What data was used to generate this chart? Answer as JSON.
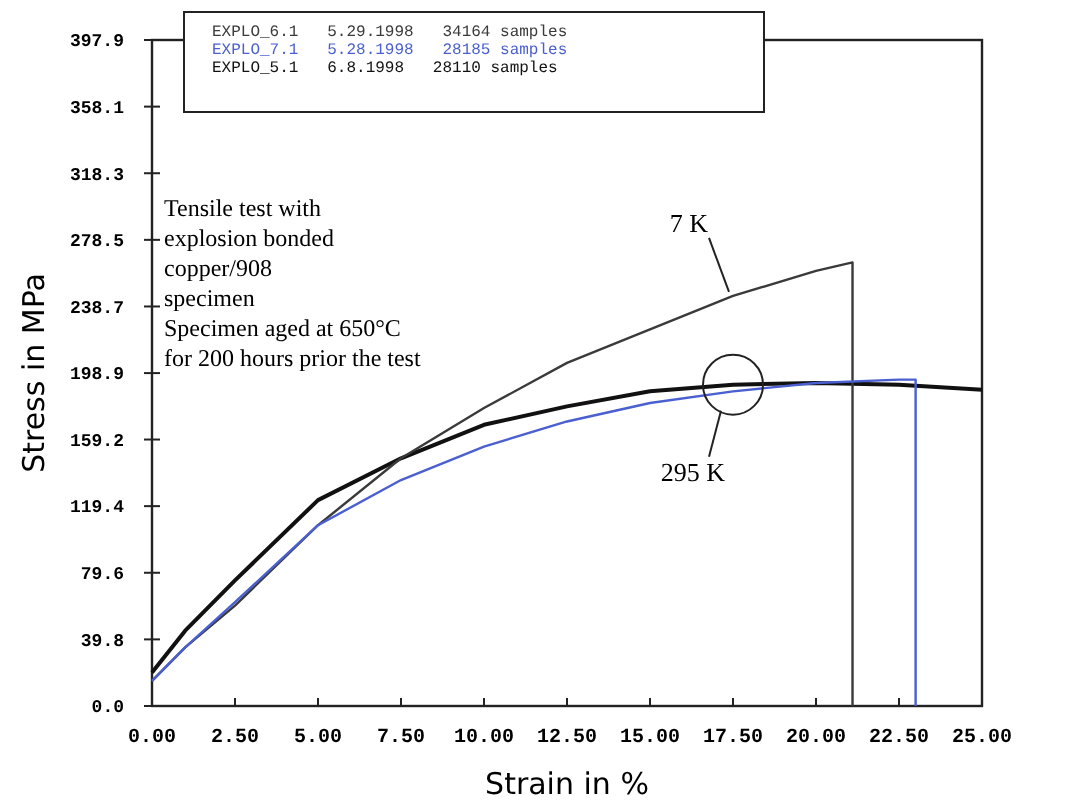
{
  "chart_data": {
    "type": "line",
    "xlabel": "Strain in %",
    "ylabel": "Stress in MPa",
    "xlim": [
      0,
      25
    ],
    "ylim": [
      0,
      397.9
    ],
    "xticks": [
      {
        "value": 0,
        "label": "0.00"
      },
      {
        "value": 2.5,
        "label": "2.50"
      },
      {
        "value": 5,
        "label": "5.00"
      },
      {
        "value": 7.5,
        "label": "7.50"
      },
      {
        "value": 10,
        "label": "10.00"
      },
      {
        "value": 12.5,
        "label": "12.50"
      },
      {
        "value": 15,
        "label": "15.00"
      },
      {
        "value": 17.5,
        "label": "17.50"
      },
      {
        "value": 20,
        "label": "20.00"
      },
      {
        "value": 22.5,
        "label": "22.50"
      },
      {
        "value": 25,
        "label": "25.00"
      }
    ],
    "yticks": [
      {
        "value": 0,
        "label": "0.0"
      },
      39.8,
      79.6,
      119.4,
      159.2,
      198.9,
      238.7,
      278.5,
      318.3,
      358.1,
      397.9
    ],
    "grid": false,
    "legend": "top",
    "marker": "none",
    "line_style": "solid",
    "series": [
      {
        "name": "EXPLO_6.1   5.29.1998   34164 samples",
        "color": "#3a3a3a",
        "x": [
          0,
          1,
          2.5,
          5,
          7.5,
          10,
          12.5,
          15,
          17.5,
          20,
          21.1,
          21.1
        ],
        "values": [
          15,
          35,
          60,
          108,
          148,
          178,
          205,
          225,
          245,
          260,
          265,
          0
        ]
      },
      {
        "name": "EXPLO_7.1   5.28.1998   28185 samples",
        "color": "#4a5fd0",
        "x": [
          0,
          1,
          2.5,
          5,
          7.5,
          10,
          12.5,
          15,
          17.5,
          20,
          22.5,
          23,
          23
        ],
        "values": [
          15,
          35,
          62,
          108,
          135,
          155,
          170,
          181,
          188,
          193,
          195,
          195,
          0
        ]
      },
      {
        "name": "EXPLO_5.1   6.8.1998   28110 samples",
        "color": "#111111",
        "x": [
          0,
          1,
          2.5,
          5,
          7.5,
          10,
          12.5,
          15,
          17.5,
          20,
          22.5,
          25
        ],
        "values": [
          20,
          45,
          75,
          123,
          148,
          168,
          179,
          188,
          192,
          193,
          192,
          189
        ]
      }
    ],
    "annotations": [
      "Tensile test with\nexplosion bonded\ncopper/908\nspecimen\nSpecimen aged at 650°C\nfor 200 hours prior the test",
      {
        "text": "7 K",
        "x": 17.5,
        "y": 245
      },
      {
        "text": "295 K",
        "x": 17.5,
        "y": 192
      }
    ]
  }
}
